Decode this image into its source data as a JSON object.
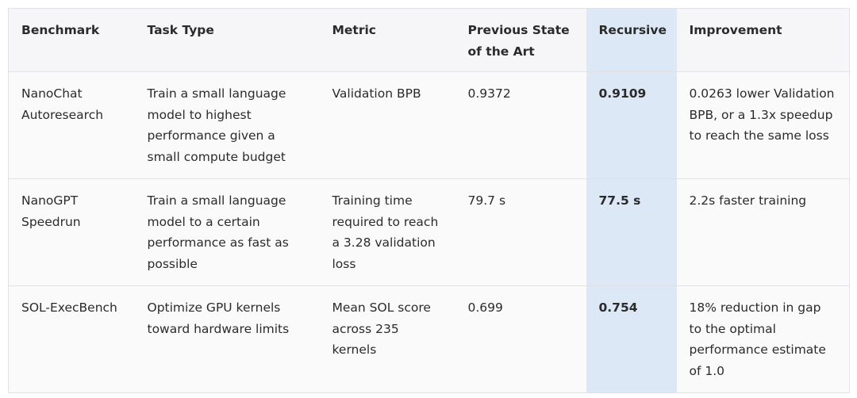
{
  "table": {
    "header": [
      "Benchmark",
      "Task Type",
      "Metric",
      "Previous State of the Art",
      "Recursive",
      "Improvement"
    ],
    "rows": [
      [
        "NanoChat Autoresearch",
        "Train a small language model to highest performance given a small compute budget",
        "Validation BPB",
        "0.9372",
        "0.9109",
        "0.0263 lower Validation BPB, or a 1.3x speedup to reach the same loss"
      ],
      [
        "NanoGPT Speedrun",
        "Train a small language model to a certain performance as fast as possible",
        "Training time required to reach a 3.28 validation loss",
        "79.7 s",
        "77.5 s",
        "2.2s faster training"
      ],
      [
        "SOL-ExecBench",
        "Optimize GPU kernels toward hardware limits",
        "Mean SOL score across 235 kernels",
        "0.699",
        "0.754",
        "18% reduction in gap to the optimal performance estimate of 1.0"
      ]
    ]
  }
}
